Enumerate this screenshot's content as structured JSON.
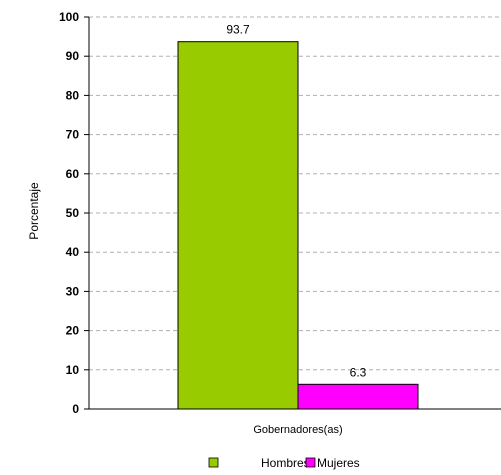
{
  "chart_data": {
    "type": "bar",
    "categories": [
      "Gobernadores(as)"
    ],
    "series": [
      {
        "name": "Hombres",
        "values": [
          93.7
        ],
        "color": "#99cc00",
        "labels": [
          "93.7"
        ]
      },
      {
        "name": "Mujeres",
        "values": [
          6.3
        ],
        "color": "#ff00ff",
        "labels": [
          "6.3"
        ]
      }
    ],
    "ylabel": "Porcentaje",
    "xlabel": "",
    "ylim": [
      0,
      100
    ],
    "yticks": [
      "0",
      "10",
      "20",
      "30",
      "40",
      "50",
      "60",
      "70",
      "80",
      "90",
      "100"
    ],
    "grid": true,
    "legend_position": "bottom"
  }
}
